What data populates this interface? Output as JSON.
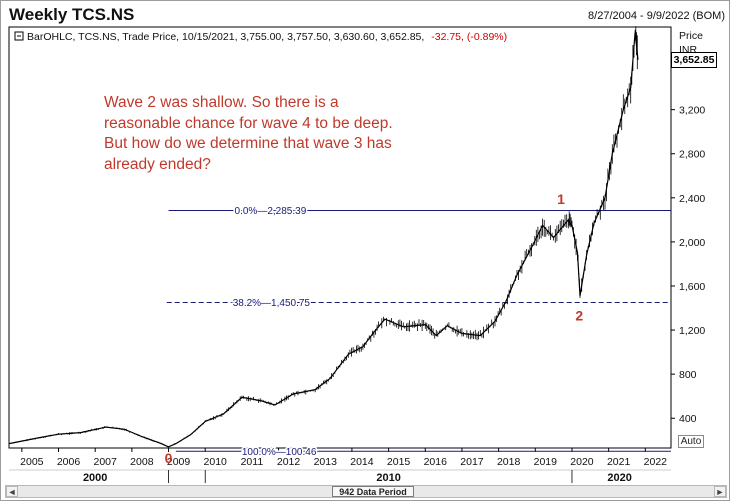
{
  "header": {
    "title": "Weekly TCS.NS",
    "date_range": "8/27/2004 - 9/9/2022 (BOM)"
  },
  "legend": {
    "prefix": "BarOHLC, TCS.NS, Trade Price, 10/15/2021, 3,755.00, 3,757.50, 3,630.60, 3,652.85,",
    "change": "-32.75, (-0.89%)",
    "change_color": "#d00000"
  },
  "axis_labels": {
    "price": "Price",
    "currency": "INR"
  },
  "annotation": "Wave 2 was shallow. So there is a reasonable chance for wave 4 to be deep. But how do we determine that wave 3 has already ended?",
  "auto_label": "Auto",
  "scrollbar": {
    "left": "◄",
    "right": "►",
    "thumb_label": "942 Data Period"
  },
  "current_price_label": "3,652.85",
  "colors": {
    "annotation": "#c0392b",
    "fib_line": "#1a1a7a",
    "series": "#000000"
  },
  "chart_data": {
    "type": "line",
    "title": "Weekly TCS.NS",
    "xlabel": "",
    "ylabel": "Price (INR)",
    "ylim": [
      130,
      3950
    ],
    "xlim": [
      2004.65,
      2022.7
    ],
    "x": [
      2004.65,
      2005.5,
      2006.0,
      2006.6,
      2007.3,
      2007.8,
      2008.3,
      2008.8,
      2009.0,
      2009.2,
      2009.6,
      2010.0,
      2010.5,
      2011.0,
      2011.5,
      2011.9,
      2012.4,
      2013.0,
      2013.4,
      2013.9,
      2014.3,
      2014.6,
      2014.9,
      2015.4,
      2016.0,
      2016.3,
      2016.6,
      2017.0,
      2017.5,
      2017.9,
      2018.2,
      2018.5,
      2018.9,
      2019.2,
      2019.5,
      2019.9,
      2020.0,
      2020.15,
      2020.22,
      2020.4,
      2020.6,
      2020.9,
      2021.1,
      2021.4,
      2021.6,
      2021.72,
      2021.8
    ],
    "y": [
      170,
      225,
      255,
      270,
      320,
      300,
      230,
      170,
      140,
      170,
      250,
      370,
      440,
      590,
      560,
      520,
      620,
      660,
      760,
      980,
      1050,
      1180,
      1300,
      1230,
      1250,
      1150,
      1240,
      1170,
      1150,
      1280,
      1460,
      1700,
      1950,
      2150,
      2040,
      2200,
      2150,
      1900,
      1510,
      1880,
      2170,
      2400,
      2800,
      3200,
      3400,
      3900,
      3652.85
    ],
    "y_ticks": [
      400,
      800,
      1200,
      1600,
      2000,
      2400,
      2800,
      3200
    ],
    "y_tick_labels": [
      "400",
      "800",
      "1,200",
      "1,600",
      "2,000",
      "2,400",
      "2,800",
      "3,200"
    ],
    "x_ticks": [
      "2005",
      "2006",
      "2007",
      "2008",
      "2009",
      "2010",
      "2011",
      "2012",
      "2013",
      "2014",
      "2015",
      "2016",
      "2017",
      "2018",
      "2019",
      "2020",
      "2021",
      "2022"
    ],
    "decade_labels": [
      {
        "year": 2000,
        "label": "2000"
      },
      {
        "year": 2010,
        "label": "2010"
      },
      {
        "year": 2020,
        "label": "2020"
      }
    ],
    "fibonacci_levels": [
      {
        "label": "0.0%",
        "price": 2285.39,
        "price_label": "2,285.39",
        "style": "solid",
        "x_start": 2009.0
      },
      {
        "label": "38.2%",
        "price": 1450.75,
        "price_label": "1,450.75",
        "style": "dashed",
        "x_start": 2008.95
      },
      {
        "label": "100.0%",
        "price": 100.46,
        "price_label": "100.46",
        "style": "solid",
        "x_start": 2009.2
      }
    ],
    "wave_labels": [
      {
        "label": "0",
        "x": 2009.0,
        "y": 140
      },
      {
        "label": "1",
        "x": 2019.7,
        "y": 2290
      },
      {
        "label": "2",
        "x": 2020.2,
        "y": 1430
      }
    ],
    "last_value": 3652.85
  }
}
